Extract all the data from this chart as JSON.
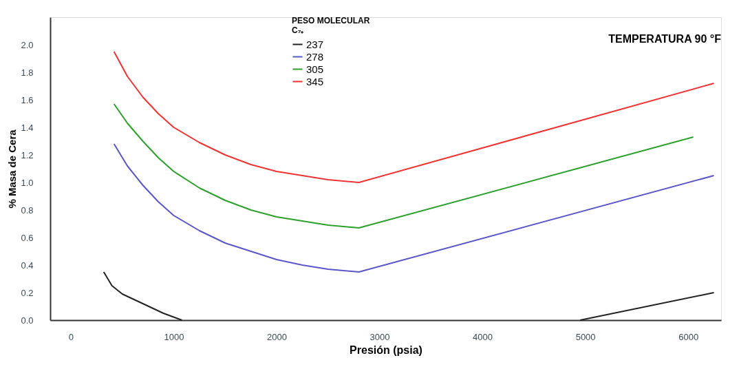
{
  "chart_data": {
    "type": "line",
    "title": "TEMPERATURA 90 °F",
    "xlabel": "Presión (psia)",
    "ylabel": "% Masa de Cera",
    "legend_title": "PESO MOLECULAR\nC₇₊",
    "legend": "top",
    "series": [
      {
        "name": "237",
        "color": "#222222",
        "x": [
          320,
          400,
          500,
          700,
          900,
          1080,
          3000,
          4950,
          6250
        ],
        "values": [
          0.35,
          0.25,
          0.19,
          0.12,
          0.05,
          0.0,
          null,
          0.0,
          0.2
        ]
      },
      {
        "name": "278",
        "color": "#5a55c8",
        "x": [
          420,
          550,
          700,
          850,
          1000,
          1250,
          1500,
          1750,
          2000,
          2250,
          2500,
          2800,
          6250
        ],
        "values": [
          1.28,
          1.12,
          0.98,
          0.86,
          0.76,
          0.65,
          0.56,
          0.5,
          0.44,
          0.4,
          0.37,
          0.35,
          1.05
        ]
      },
      {
        "name": "305",
        "color": "#2ca02c",
        "x": [
          420,
          550,
          700,
          850,
          1000,
          1250,
          1500,
          1750,
          2000,
          2250,
          2500,
          2800,
          6050
        ],
        "values": [
          1.57,
          1.43,
          1.3,
          1.18,
          1.08,
          0.96,
          0.87,
          0.8,
          0.75,
          0.72,
          0.69,
          0.67,
          1.33
        ]
      },
      {
        "name": "345",
        "color": "#ee3333",
        "x": [
          420,
          550,
          700,
          850,
          1000,
          1250,
          1500,
          1750,
          2000,
          2250,
          2500,
          2800,
          6250
        ],
        "values": [
          1.95,
          1.77,
          1.62,
          1.5,
          1.4,
          1.29,
          1.2,
          1.13,
          1.08,
          1.05,
          1.02,
          1.0,
          1.72
        ]
      }
    ],
    "xlim": [
      -200,
      6320
    ],
    "xticks": [
      0,
      1000,
      2000,
      3000,
      4000,
      5000,
      6000
    ],
    "ylim": [
      0,
      2.2
    ],
    "yticks": [
      {
        "value": 0,
        "label": "0.0"
      },
      {
        "value": 0.2,
        "label": "0.2"
      },
      {
        "value": 0.4,
        "label": "0.4"
      },
      {
        "value": 0.6,
        "label": "0.6"
      },
      {
        "value": 0.8,
        "label": "0.8"
      },
      {
        "value": 1,
        "label": "1.0"
      },
      {
        "value": 1.2,
        "label": "1.2"
      },
      {
        "value": 1.4,
        "label": "1.4"
      },
      {
        "value": 1.6,
        "label": "1.6"
      },
      {
        "value": 1.8,
        "label": "1.8"
      },
      {
        "value": 2,
        "label": "2.0"
      }
    ],
    "grid": false,
    "line_style": "solid",
    "marker": "none"
  }
}
